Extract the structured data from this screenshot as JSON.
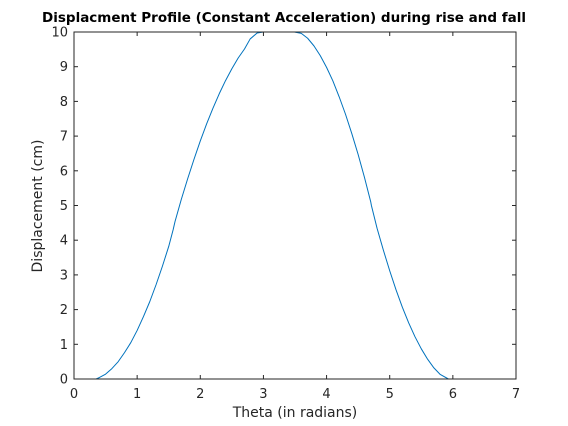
{
  "chart_data": {
    "type": "line",
    "title": "Displacment Profile (Constant Acceleration) during rise and fall",
    "xlabel": "Theta (in radians)",
    "ylabel": "Displacement (cm)",
    "xlim": [
      0,
      7
    ],
    "ylim": [
      0,
      10
    ],
    "xticks": [
      "0",
      "1",
      "2",
      "3",
      "4",
      "5",
      "6",
      "7"
    ],
    "yticks": [
      "0",
      "1",
      "2",
      "3",
      "4",
      "5",
      "6",
      "7",
      "8",
      "9",
      "10"
    ],
    "grid": false,
    "legend": "none",
    "series": [
      {
        "color": "#0072BD",
        "x": [
          0.35,
          0.4,
          0.5,
          0.6,
          0.7,
          0.8,
          0.9,
          1.0,
          1.1,
          1.2,
          1.3,
          1.4,
          1.5,
          1.57,
          1.6,
          1.7,
          1.8,
          1.9,
          2.0,
          2.1,
          2.2,
          2.3,
          2.4,
          2.5,
          2.6,
          2.7,
          2.79,
          2.9,
          3.0,
          3.1,
          3.2,
          3.3,
          3.4,
          3.49,
          3.6,
          3.7,
          3.8,
          3.9,
          4.0,
          4.1,
          4.2,
          4.3,
          4.4,
          4.5,
          4.6,
          4.7,
          4.71,
          4.8,
          4.9,
          5.0,
          5.1,
          5.2,
          5.3,
          5.4,
          5.5,
          5.6,
          5.7,
          5.8,
          5.93,
          6.0,
          6.2
        ],
        "y": [
          0.0,
          0.04,
          0.14,
          0.3,
          0.5,
          0.76,
          1.05,
          1.4,
          1.8,
          2.23,
          2.72,
          3.25,
          3.82,
          4.3,
          4.54,
          5.18,
          5.77,
          6.33,
          6.86,
          7.35,
          7.8,
          8.22,
          8.6,
          8.94,
          9.25,
          9.51,
          9.8,
          9.97,
          10.0,
          10.0,
          10.0,
          10.0,
          10.0,
          10.0,
          9.96,
          9.82,
          9.6,
          9.32,
          8.98,
          8.59,
          8.13,
          7.63,
          7.07,
          6.47,
          5.81,
          5.1,
          5.0,
          4.34,
          3.71,
          3.12,
          2.57,
          2.07,
          1.62,
          1.22,
          0.87,
          0.57,
          0.32,
          0.13,
          0.0,
          0.0,
          0.0
        ]
      }
    ]
  }
}
